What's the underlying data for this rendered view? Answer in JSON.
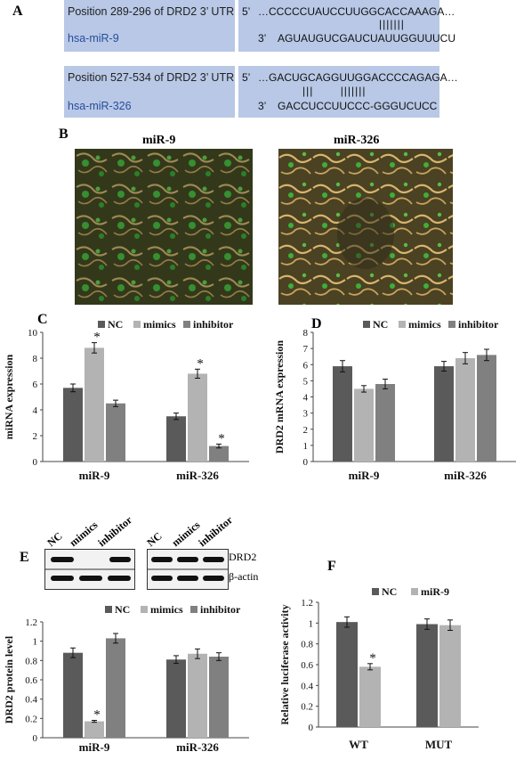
{
  "panels": {
    "a": "A",
    "b": "B",
    "c": "C",
    "d": "D",
    "e": "E",
    "f": "F"
  },
  "sequences": [
    {
      "position_label": "Position 289-296 of DRD2 3’ UTR",
      "mirna_label": "hsa-miR-9",
      "prime5": "5’",
      "prime3": "3’",
      "target_seq": "…CCCCCUAUCCUUGGCACCAAAGA…",
      "pairing": "|||||||",
      "mirna_seq": "AGUAUGUCGAUCUAUUGGUUUCU"
    },
    {
      "position_label": "Position 527-534 of DRD2 3’ UTR",
      "mirna_label": "hsa-miR-326",
      "prime5": "5’",
      "prime3": "3’",
      "target_seq": "…GACUGCAGGUUGGACCCCAGAGA…",
      "pairing": "|||       |||||||",
      "mirna_seq": "GACCUCCUUCCC-GGGUCUCC"
    }
  ],
  "micrographs": {
    "left_title": "miR-9",
    "right_title": "miR-326"
  },
  "blot": {
    "lanes": [
      "NC",
      "mimics",
      "inhibitor"
    ],
    "rows": [
      "DRD2",
      "β-actin"
    ]
  },
  "colors": {
    "nc": "#5a5a5a",
    "mimics": "#b3b3b3",
    "inhibitor": "#808080",
    "seq_bg": "#b8c8e6"
  },
  "chart_data": [
    {
      "id": "C",
      "type": "bar",
      "ylabel": "miRNA expression",
      "categories": [
        "miR-9",
        "miR-326"
      ],
      "series": [
        {
          "name": "NC",
          "values": [
            5.7,
            3.5
          ],
          "err": [
            0.3,
            0.25
          ]
        },
        {
          "name": "mimics",
          "values": [
            8.8,
            6.8
          ],
          "err": [
            0.4,
            0.35
          ]
        },
        {
          "name": "inhibitor",
          "values": [
            4.5,
            1.2
          ],
          "err": [
            0.25,
            0.15
          ]
        }
      ],
      "ylim": [
        0,
        10
      ],
      "yticks": [
        0,
        2,
        4,
        6,
        8,
        10
      ],
      "significance": [
        {
          "category": 0,
          "series": 1
        },
        {
          "category": 1,
          "series": 1
        },
        {
          "category": 1,
          "series": 2
        }
      ],
      "sig_mark": "*",
      "legend": "top"
    },
    {
      "id": "D",
      "type": "bar",
      "ylabel": "DRD2 mRNA expression",
      "categories": [
        "miR-9",
        "miR-326"
      ],
      "series": [
        {
          "name": "NC",
          "values": [
            5.9,
            5.9
          ],
          "err": [
            0.35,
            0.3
          ]
        },
        {
          "name": "mimics",
          "values": [
            4.5,
            6.4
          ],
          "err": [
            0.2,
            0.35
          ]
        },
        {
          "name": "inhibitor",
          "values": [
            4.8,
            6.6
          ],
          "err": [
            0.3,
            0.35
          ]
        }
      ],
      "ylim": [
        0,
        8
      ],
      "yticks": [
        0,
        1,
        2,
        3,
        4,
        5,
        6,
        7,
        8
      ],
      "significance": [],
      "sig_mark": "*",
      "legend": "top"
    },
    {
      "id": "E",
      "type": "bar",
      "ylabel": "DRD2 protein level",
      "categories": [
        "miR-9",
        "miR-326"
      ],
      "series": [
        {
          "name": "NC",
          "values": [
            0.88,
            0.81
          ],
          "err": [
            0.05,
            0.04
          ]
        },
        {
          "name": "mimics",
          "values": [
            0.17,
            0.87
          ],
          "err": [
            0.01,
            0.05
          ]
        },
        {
          "name": "inhibitor",
          "values": [
            1.03,
            0.84
          ],
          "err": [
            0.05,
            0.04
          ]
        }
      ],
      "ylim": [
        0,
        1.2
      ],
      "yticks": [
        "0",
        "0.2",
        "0.4",
        "0.6",
        "0.8",
        "1",
        "1.2"
      ],
      "significance": [
        {
          "category": 0,
          "series": 1
        }
      ],
      "sig_mark": "*",
      "legend": "top"
    },
    {
      "id": "F",
      "type": "bar",
      "ylabel": "Relative luciferase activity",
      "categories": [
        "WT",
        "MUT"
      ],
      "series": [
        {
          "name": "NC",
          "values": [
            1.01,
            0.99
          ],
          "err": [
            0.05,
            0.05
          ]
        },
        {
          "name": "miR-9",
          "values": [
            0.58,
            0.98
          ],
          "err": [
            0.03,
            0.05
          ]
        }
      ],
      "ylim": [
        0,
        1.2
      ],
      "yticks": [
        "0",
        "0.2",
        "0.4",
        "0.6",
        "0.8",
        "1",
        "1.2"
      ],
      "significance": [
        {
          "category": 0,
          "series": 1
        }
      ],
      "sig_mark": "*",
      "legend": "top"
    }
  ]
}
